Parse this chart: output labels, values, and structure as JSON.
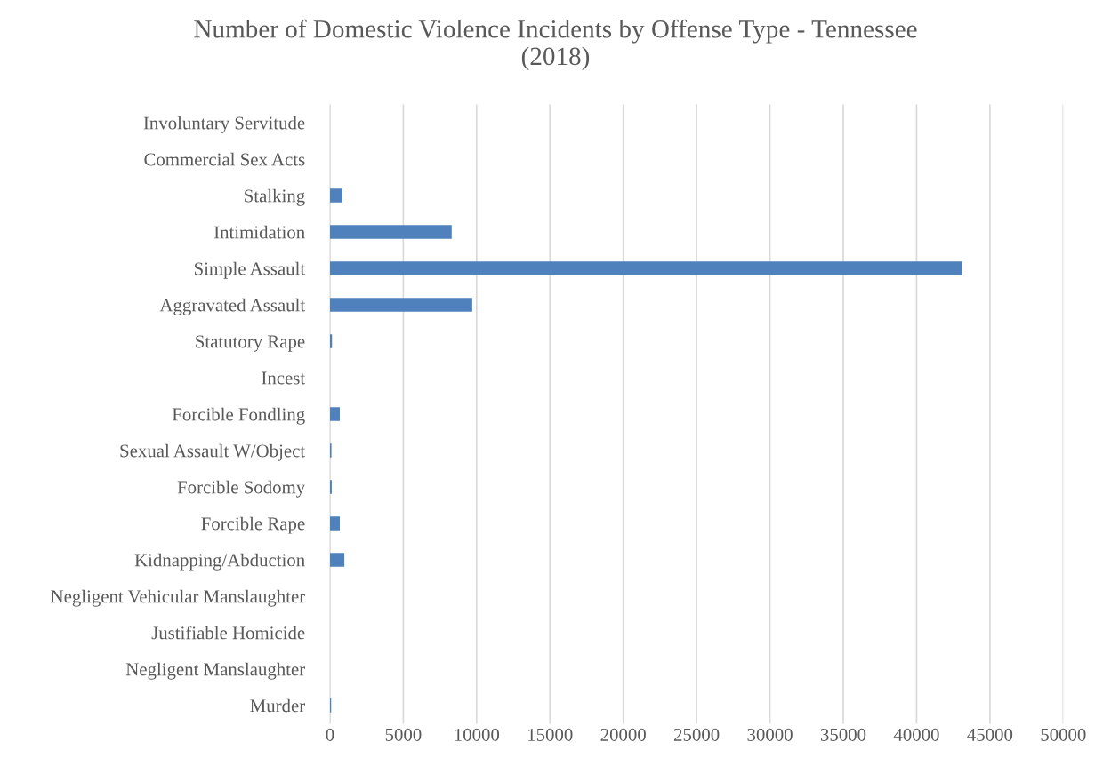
{
  "chart_data": {
    "type": "bar",
    "orientation": "horizontal",
    "title": "Number of Domestic Violence Incidents by Offense Type - Tennessee\n(2018)",
    "categories": [
      "Involuntary Servitude",
      "Commercial Sex Acts",
      "Stalking",
      "Intimidation",
      "Simple Assault",
      "Aggravated Assault",
      "Statutory Rape",
      "Incest",
      "Forcible Fondling",
      "Sexual Assault W/Object",
      "Forcible Sodomy",
      "Forcible Rape",
      "Kidnapping/Abduction",
      "Negligent Vehicular Manslaughter",
      "Justifiable Homicide",
      "Negligent Manslaughter",
      "Murder"
    ],
    "values": [
      0,
      0,
      850,
      8300,
      43100,
      9700,
      140,
      0,
      670,
      100,
      120,
      670,
      980,
      0,
      0,
      0,
      80
    ],
    "color": "#4f81bd",
    "xlim": [
      0,
      50000
    ],
    "xticks": [
      0,
      5000,
      10000,
      15000,
      20000,
      25000,
      30000,
      35000,
      40000,
      45000,
      50000
    ],
    "grid": "x",
    "legend": false
  }
}
